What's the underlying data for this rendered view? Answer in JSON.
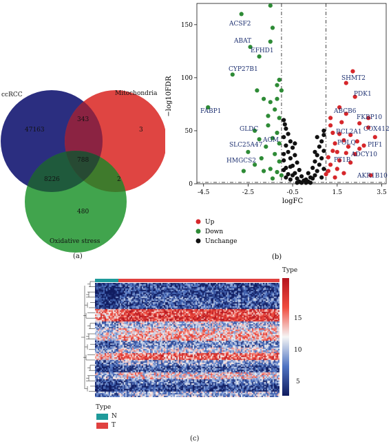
{
  "venn": {
    "sets": [
      {
        "label": "ccRCC",
        "color": "#2b2e80"
      },
      {
        "label": "Mitochondria",
        "color": "#dd3b38"
      },
      {
        "label": "Oxidative stress",
        "color": "#2c9a3a"
      }
    ],
    "counts": {
      "ccrcc_only": "47163",
      "ccrcc_mito": "343",
      "mito_only": "3",
      "all_three": "788",
      "ccrcc_oxid": "8226",
      "mito_oxid": "2",
      "oxid_only": "480"
    },
    "panel_label": "(a)"
  },
  "volcano": {
    "panel_label": "(b)",
    "legend": [
      {
        "label": "Up",
        "color": "#d6272b"
      },
      {
        "label": "Down",
        "color": "#2e8b36"
      },
      {
        "label": "Unchange",
        "color": "#111111"
      }
    ],
    "gene_labels": {
      "acsf2": "ACSF2",
      "abat": "ABAT",
      "efhd1": "EFHD1",
      "cyp27b1": "CYP27B1",
      "fabp1": "FABP1",
      "gldc": "GLDC",
      "slc25a47": "SLC25A47",
      "hmgcs2": "HMGCS2",
      "shmt2": "SHMT2",
      "pdk1": "PDK1",
      "abcb6": "ABCB6",
      "fkbp10": "FKBP10",
      "cox412": "COX412",
      "bcl2a1": "BCL2A1",
      "pif1": "PIF1",
      "polq": "POLQ",
      "adcy10": "ADCY10",
      "ptib": "PT1B",
      "akr1b10": "AKR1B10",
      "gfm": "AGM"
    }
  },
  "heatmap": {
    "panel_label": "(c)",
    "legend_title": "Type",
    "type_legend": [
      {
        "label": "N",
        "color": "#1e9a9a"
      },
      {
        "label": "T",
        "color": "#e0413f"
      }
    ],
    "colorbar_title": "Type",
    "colorbar_ticks": [
      "15",
      "10",
      "5"
    ]
  },
  "chart_data": {
    "type": "scatter",
    "title": "",
    "xlabel": "logFC",
    "ylabel": "−log10FDR",
    "xlim": [
      -4.8,
      3.7
    ],
    "ylim": [
      0,
      170
    ],
    "xticks": [
      "-4.5",
      "-2.5",
      "-0.5",
      "1.5",
      "3.5"
    ],
    "yticks": [
      "0",
      "50",
      "100",
      "150"
    ],
    "thresholds": {
      "logfc_low": -1,
      "logfc_high": 1,
      "fdr_line": 1.3
    },
    "series": [
      {
        "name": "Up",
        "color": "#d6272b",
        "points": [
          [
            2.2,
            106
          ],
          [
            1.9,
            95
          ],
          [
            2.3,
            82
          ],
          [
            1.6,
            72
          ],
          [
            1.9,
            66
          ],
          [
            2.9,
            62
          ],
          [
            2.5,
            57
          ],
          [
            1.2,
            55
          ],
          [
            1.3,
            48
          ],
          [
            1.6,
            47
          ],
          [
            2.1,
            46
          ],
          [
            2.9,
            53
          ],
          [
            3.2,
            44
          ],
          [
            1.8,
            41
          ],
          [
            2.4,
            40
          ],
          [
            1.4,
            38
          ],
          [
            2.0,
            35
          ],
          [
            2.7,
            36
          ],
          [
            1.3,
            31
          ],
          [
            1.9,
            29
          ],
          [
            2.3,
            28
          ],
          [
            1.1,
            25
          ],
          [
            1.6,
            22
          ],
          [
            2.1,
            20
          ],
          [
            1.2,
            18
          ],
          [
            1.5,
            14
          ],
          [
            3.0,
            8
          ],
          [
            1.1,
            12
          ],
          [
            1.8,
            10
          ],
          [
            1.4,
            6
          ],
          [
            1.0,
            9
          ],
          [
            2.5,
            33
          ],
          [
            1.7,
            58
          ],
          [
            1.2,
            62
          ],
          [
            1.5,
            30
          ]
        ]
      },
      {
        "name": "Down",
        "color": "#2e8b36",
        "points": [
          [
            -1.5,
            168
          ],
          [
            -2.8,
            160
          ],
          [
            -1.4,
            147
          ],
          [
            -1.5,
            134
          ],
          [
            -2.4,
            129
          ],
          [
            -2.0,
            120
          ],
          [
            -3.2,
            103
          ],
          [
            -1.1,
            98
          ],
          [
            -1.2,
            93
          ],
          [
            -1.0,
            88
          ],
          [
            -2.1,
            88
          ],
          [
            -1.8,
            80
          ],
          [
            -1.5,
            77
          ],
          [
            -4.3,
            72
          ],
          [
            -1.3,
            70
          ],
          [
            -1.1,
            62
          ],
          [
            -1.6,
            55
          ],
          [
            -2.2,
            50
          ],
          [
            -1.2,
            48
          ],
          [
            -1.4,
            43
          ],
          [
            -2.0,
            42
          ],
          [
            -1.1,
            38
          ],
          [
            -1.7,
            35
          ],
          [
            -2.5,
            30
          ],
          [
            -1.3,
            28
          ],
          [
            -1.9,
            24
          ],
          [
            -1.1,
            21
          ],
          [
            -2.2,
            18
          ],
          [
            -1.5,
            14
          ],
          [
            -1.2,
            11
          ],
          [
            -1.0,
            8
          ],
          [
            -1.8,
            12
          ],
          [
            -2.7,
            12
          ],
          [
            -1.4,
            5
          ],
          [
            -1.6,
            64
          ],
          [
            -1.2,
            80
          ]
        ]
      },
      {
        "name": "Unchange",
        "color": "#111111",
        "points": [
          [
            -0.9,
            60
          ],
          [
            -0.8,
            52
          ],
          [
            -0.7,
            47
          ],
          [
            -0.9,
            44
          ],
          [
            -0.6,
            40
          ],
          [
            -0.8,
            36
          ],
          [
            -0.5,
            34
          ],
          [
            -0.7,
            30
          ],
          [
            -0.4,
            27
          ],
          [
            -0.6,
            24
          ],
          [
            -0.9,
            22
          ],
          [
            -0.3,
            20
          ],
          [
            -0.5,
            17
          ],
          [
            -0.8,
            15
          ],
          [
            -0.2,
            13
          ],
          [
            -0.4,
            10
          ],
          [
            -0.7,
            9
          ],
          [
            -0.1,
            7
          ],
          [
            -0.3,
            5
          ],
          [
            -0.6,
            4
          ],
          [
            0.0,
            3
          ],
          [
            -0.2,
            2
          ],
          [
            0.2,
            2
          ],
          [
            0.1,
            4
          ],
          [
            0.3,
            6
          ],
          [
            0.5,
            8
          ],
          [
            0.2,
            10
          ],
          [
            0.6,
            12
          ],
          [
            0.4,
            15
          ],
          [
            0.7,
            18
          ],
          [
            0.5,
            21
          ],
          [
            0.8,
            24
          ],
          [
            0.6,
            27
          ],
          [
            0.9,
            31
          ],
          [
            0.7,
            35
          ],
          [
            0.8,
            40
          ],
          [
            0.9,
            46
          ],
          [
            0.6,
            44
          ],
          [
            -0.9,
            28
          ],
          [
            -0.5,
            8
          ],
          [
            0.4,
            5
          ],
          [
            0.8,
            6
          ],
          [
            -0.8,
            6
          ],
          [
            0.9,
            14
          ],
          [
            -0.9,
            13
          ],
          [
            0.3,
            1
          ],
          [
            -0.3,
            1
          ],
          [
            -0.1,
            1
          ],
          [
            0.1,
            1
          ],
          [
            -0.6,
            16
          ],
          [
            0.5,
            30
          ],
          [
            -0.4,
            38
          ],
          [
            0.9,
            50
          ],
          [
            -0.85,
            56
          ]
        ]
      }
    ]
  }
}
